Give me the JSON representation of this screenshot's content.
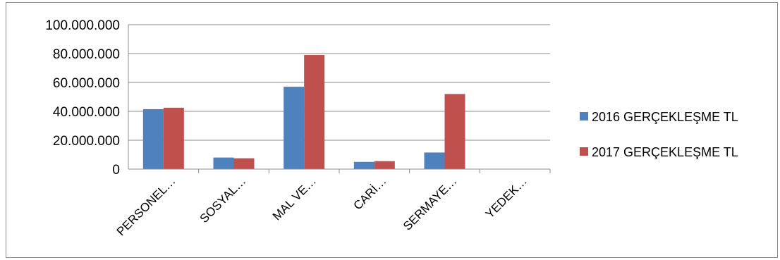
{
  "chart_data": {
    "type": "bar",
    "categories": [
      "PERSONEL…",
      "SOSYAL…",
      "MAL VE…",
      "CARİ…",
      "SERMAYE…",
      "YEDEK…"
    ],
    "series": [
      {
        "name": "2016 GERÇEKLEŞME TL",
        "color": "#4f81bd",
        "values": [
          41500000,
          8000000,
          57000000,
          5000000,
          11500000,
          0
        ]
      },
      {
        "name": "2017 GERÇEKLEŞME TL",
        "color": "#c0504d",
        "values": [
          42500000,
          7500000,
          79000000,
          5500000,
          52000000,
          0
        ]
      }
    ],
    "yticks": [
      "0",
      "20.000.000",
      "40.000.000",
      "60.000.000",
      "80.000.000",
      "100.000.000"
    ],
    "ylim": [
      0,
      100000000
    ],
    "title": "",
    "xlabel": "",
    "ylabel": "",
    "grid": true,
    "legend_position": "right"
  }
}
